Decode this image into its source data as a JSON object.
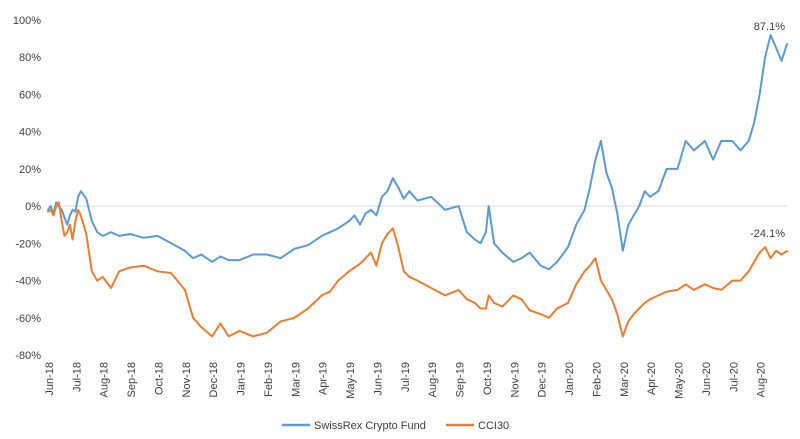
{
  "chart_data": {
    "type": "line",
    "ylim": [
      -80,
      100
    ],
    "y_ticks": [
      "100%",
      "80%",
      "60%",
      "40%",
      "20%",
      "0%",
      "-20%",
      "-40%",
      "-60%",
      "-80%"
    ],
    "y_tick_values": [
      100,
      80,
      60,
      40,
      20,
      0,
      -20,
      -40,
      -60,
      -80
    ],
    "x_tick_labels": [
      "Jun-18",
      "Jul-18",
      "Aug-18",
      "Sep-18",
      "Oct-18",
      "Nov-18",
      "Dec-18",
      "Jan-19",
      "Feb-19",
      "Mar-19",
      "Apr-19",
      "May-19",
      "Jun-19",
      "Jul-19",
      "Aug-19",
      "Sep-19",
      "Oct-19",
      "Nov-19",
      "Dec-19",
      "Jan-20",
      "Feb-20",
      "Mar-20",
      "Apr-20",
      "May-20",
      "Jun-20",
      "Jul-20",
      "Aug-20"
    ],
    "x_month_index": [
      0,
      1,
      2,
      3,
      4,
      5,
      6,
      7,
      8,
      9,
      10,
      11,
      12,
      13,
      14,
      15,
      16,
      17,
      18,
      19,
      20,
      21,
      22,
      23,
      24,
      25,
      26
    ],
    "series": [
      {
        "name": "SwissRex Crypto Fund",
        "color": "#5B9BD5",
        "x": [
          0.0,
          0.1,
          0.2,
          0.3,
          0.4,
          0.5,
          0.6,
          0.7,
          0.8,
          0.9,
          1.0,
          1.1,
          1.2,
          1.4,
          1.6,
          1.8,
          2.0,
          2.3,
          2.6,
          3.0,
          3.5,
          4.0,
          4.5,
          5.0,
          5.3,
          5.6,
          6.0,
          6.3,
          6.6,
          7.0,
          7.5,
          8.0,
          8.5,
          9.0,
          9.5,
          10.0,
          10.3,
          10.6,
          11.0,
          11.2,
          11.4,
          11.6,
          11.8,
          12.0,
          12.2,
          12.4,
          12.6,
          12.8,
          13.0,
          13.2,
          13.5,
          14.0,
          14.5,
          15.0,
          15.3,
          15.6,
          15.8,
          16.0,
          16.1,
          16.3,
          16.6,
          17.0,
          17.3,
          17.6,
          18.0,
          18.3,
          18.6,
          19.0,
          19.3,
          19.6,
          19.8,
          20.0,
          20.2,
          20.4,
          20.6,
          20.8,
          21.0,
          21.2,
          21.4,
          21.6,
          21.8,
          22.0,
          22.3,
          22.6,
          23.0,
          23.3,
          23.6,
          24.0,
          24.3,
          24.6,
          25.0,
          25.3,
          25.6,
          25.8,
          26.0,
          26.2,
          26.4,
          26.6,
          26.8,
          27.0
        ],
        "values": [
          -2,
          0,
          -4,
          2,
          0,
          -2,
          -6,
          -10,
          -5,
          -2,
          -3,
          5,
          8,
          4,
          -8,
          -14,
          -16,
          -14,
          -16,
          -15,
          -17,
          -16,
          -20,
          -24,
          -28,
          -26,
          -30,
          -27,
          -29,
          -29,
          -26,
          -26,
          -28,
          -23,
          -21,
          -16,
          -14,
          -12,
          -8,
          -5,
          -10,
          -4,
          -2,
          -5,
          5,
          8,
          15,
          10,
          4,
          8,
          3,
          5,
          -2,
          0,
          -14,
          -18,
          -20,
          -14,
          0,
          -20,
          -25,
          -30,
          -28,
          -25,
          -32,
          -34,
          -30,
          -22,
          -10,
          -2,
          10,
          25,
          35,
          18,
          10,
          -4,
          -24,
          -10,
          -5,
          0,
          8,
          5,
          8,
          20,
          20,
          35,
          30,
          35,
          25,
          35,
          35,
          30,
          35,
          45,
          60,
          80,
          92,
          85,
          78,
          87.1
        ],
        "end_label": "87.1%"
      },
      {
        "name": "CCI30",
        "color": "#ED7D31",
        "x": [
          0.0,
          0.1,
          0.2,
          0.3,
          0.4,
          0.5,
          0.6,
          0.7,
          0.8,
          0.9,
          1.0,
          1.1,
          1.2,
          1.4,
          1.6,
          1.8,
          2.0,
          2.3,
          2.6,
          3.0,
          3.5,
          4.0,
          4.5,
          5.0,
          5.3,
          5.6,
          6.0,
          6.3,
          6.6,
          7.0,
          7.5,
          8.0,
          8.5,
          9.0,
          9.5,
          10.0,
          10.3,
          10.6,
          11.0,
          11.2,
          11.4,
          11.6,
          11.8,
          12.0,
          12.2,
          12.4,
          12.6,
          12.8,
          13.0,
          13.2,
          13.5,
          14.0,
          14.5,
          15.0,
          15.3,
          15.6,
          15.8,
          16.0,
          16.1,
          16.3,
          16.6,
          17.0,
          17.3,
          17.6,
          18.0,
          18.3,
          18.6,
          19.0,
          19.3,
          19.6,
          19.8,
          20.0,
          20.2,
          20.4,
          20.6,
          20.8,
          21.0,
          21.2,
          21.4,
          21.6,
          21.8,
          22.0,
          22.3,
          22.6,
          23.0,
          23.3,
          23.6,
          24.0,
          24.3,
          24.6,
          25.0,
          25.3,
          25.6,
          25.8,
          26.0,
          26.2,
          26.4,
          26.6,
          26.8,
          27.0
        ],
        "values": [
          -3,
          -2,
          -5,
          0,
          2,
          -8,
          -16,
          -14,
          -10,
          -18,
          -8,
          -2,
          -5,
          -15,
          -35,
          -40,
          -38,
          -44,
          -35,
          -33,
          -32,
          -35,
          -36,
          -45,
          -60,
          -65,
          -70,
          -63,
          -70,
          -67,
          -70,
          -68,
          -62,
          -60,
          -55,
          -48,
          -46,
          -40,
          -35,
          -33,
          -31,
          -28,
          -25,
          -32,
          -20,
          -15,
          -12,
          -22,
          -35,
          -38,
          -40,
          -44,
          -48,
          -45,
          -50,
          -52,
          -55,
          -55,
          -48,
          -52,
          -54,
          -48,
          -50,
          -56,
          -58,
          -60,
          -55,
          -52,
          -42,
          -35,
          -32,
          -28,
          -40,
          -45,
          -50,
          -58,
          -70,
          -62,
          -58,
          -55,
          -52,
          -50,
          -48,
          -46,
          -45,
          -42,
          -45,
          -42,
          -44,
          -45,
          -40,
          -40,
          -35,
          -30,
          -25,
          -22,
          -28,
          -24,
          -26,
          -24.1
        ],
        "end_label": "-24.1%"
      }
    ],
    "grid": false,
    "legend_position": "bottom"
  }
}
